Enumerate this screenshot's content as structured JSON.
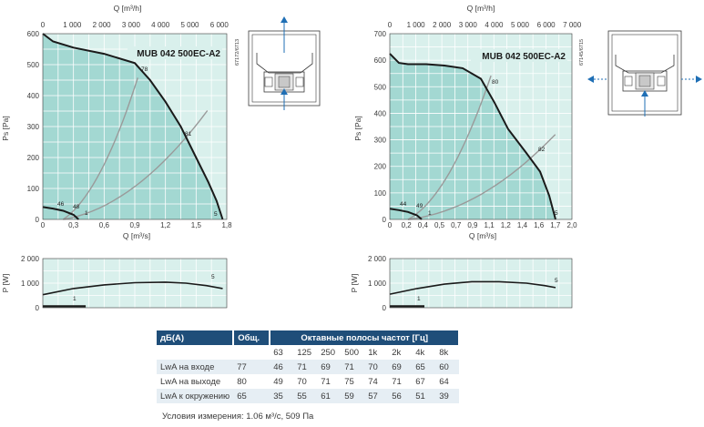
{
  "charts": [
    {
      "model": "MUB 042 500EC-A2",
      "drawing_code": "67172/6713",
      "q_top_label": "Q [m³/h]",
      "q_bottom_label": "Q [m³/s]",
      "ps_label": "Ps [Pa]",
      "p_label": "P [W]",
      "top_ticks": [
        "0",
        "1 000",
        "2 000",
        "3 000",
        "4 000",
        "5 000",
        "6 000"
      ],
      "bottom_ticks": [
        "0",
        "0,3",
        "0,6",
        "0,9",
        "1,2",
        "1,5",
        "1,8"
      ],
      "ps_ticks": [
        "0",
        "100",
        "200",
        "300",
        "400",
        "500",
        "600"
      ],
      "p_ticks": [
        "0",
        "1 000",
        "2 000"
      ],
      "curve_labels": [
        "46",
        "48",
        "1",
        "78",
        "81",
        "5"
      ],
      "power_labels": [
        "1",
        "5"
      ]
    },
    {
      "model": "MUB 042 500EC-A2",
      "drawing_code": "67145/6715",
      "q_top_label": "Q [m³/h]",
      "q_bottom_label": "Q [m³/s]",
      "ps_label": "Ps [Pa]",
      "p_label": "P [W]",
      "top_ticks": [
        "0",
        "1 000",
        "2 000",
        "3 000",
        "4 000",
        "5 000",
        "6 000",
        "7 000"
      ],
      "bottom_ticks": [
        "0",
        "0,2",
        "0,4",
        "0,5",
        "0,7",
        "0,9",
        "1,1",
        "1,2",
        "1,4",
        "1,6",
        "1,7",
        "2,0"
      ],
      "ps_ticks": [
        "0",
        "100",
        "200",
        "300",
        "400",
        "500",
        "600",
        "700"
      ],
      "p_ticks": [
        "0",
        "1 000",
        "2 000"
      ],
      "curve_labels": [
        "44",
        "49",
        "1",
        "80",
        "82",
        "5"
      ],
      "power_labels": [
        "1",
        "5"
      ]
    }
  ],
  "chart_data": [
    {
      "type": "line",
      "title": "MUB 042 500EC-A2",
      "xlabel": "Q [m³/s]",
      "ylabel": "Ps [Pa]",
      "xlim": [
        0,
        1.8
      ],
      "ylim": [
        0,
        600
      ],
      "grid": true,
      "series": [
        {
          "name": "5",
          "x": [
            0,
            0.1,
            0.3,
            0.6,
            0.9,
            1.05,
            1.2,
            1.35,
            1.5,
            1.62,
            1.7,
            1.76
          ],
          "y": [
            600,
            575,
            555,
            535,
            505,
            450,
            380,
            300,
            200,
            120,
            60,
            0
          ]
        },
        {
          "name": "1",
          "x": [
            0,
            0.1,
            0.2,
            0.3,
            0.35
          ],
          "y": [
            40,
            35,
            28,
            15,
            0
          ]
        }
      ],
      "points": [
        {
          "label": "46",
          "x": 0.2,
          "y": 30
        },
        {
          "label": "48",
          "x": 0.3,
          "y": 15
        },
        {
          "label": "78",
          "x": 0.92,
          "y": 470
        },
        {
          "label": "81",
          "x": 1.4,
          "y": 270
        }
      ]
    },
    {
      "type": "line",
      "title": "MUB 042 500EC-A2",
      "xlabel": "Q [m³/s]",
      "ylabel": "Ps [Pa]",
      "xlim": [
        0,
        2.0
      ],
      "ylim": [
        0,
        700
      ],
      "grid": true,
      "series": [
        {
          "name": "5",
          "x": [
            0,
            0.1,
            0.2,
            0.4,
            0.6,
            0.8,
            1.0,
            1.15,
            1.3,
            1.5,
            1.65,
            1.75,
            1.82
          ],
          "y": [
            625,
            590,
            585,
            585,
            580,
            570,
            530,
            440,
            340,
            250,
            180,
            90,
            0
          ]
        },
        {
          "name": "1",
          "x": [
            0,
            0.1,
            0.2,
            0.3,
            0.35
          ],
          "y": [
            40,
            35,
            28,
            15,
            0
          ]
        }
      ],
      "points": [
        {
          "label": "44",
          "x": 0.15,
          "y": 30
        },
        {
          "label": "49",
          "x": 0.3,
          "y": 15
        },
        {
          "label": "80",
          "x": 1.05,
          "y": 500
        },
        {
          "label": "82",
          "x": 1.58,
          "y": 245
        }
      ]
    },
    {
      "type": "line",
      "xlabel": "Q [m³/s]",
      "ylabel": "P [W]",
      "xlim": [
        0,
        1.8
      ],
      "ylim": [
        0,
        2000
      ],
      "series": [
        {
          "name": "5",
          "x": [
            0,
            0.3,
            0.6,
            0.9,
            1.2,
            1.4,
            1.6,
            1.76
          ],
          "y": [
            530,
            780,
            930,
            1020,
            1040,
            1000,
            900,
            780
          ]
        },
        {
          "name": "1",
          "x": [
            0,
            0.3,
            0.42
          ],
          "y": [
            60,
            60,
            60
          ]
        }
      ]
    },
    {
      "type": "line",
      "xlabel": "Q [m³/s]",
      "ylabel": "P [W]",
      "xlim": [
        0,
        2.0
      ],
      "ylim": [
        0,
        2000
      ],
      "series": [
        {
          "name": "5",
          "x": [
            0,
            0.3,
            0.6,
            0.9,
            1.2,
            1.5,
            1.7,
            1.82
          ],
          "y": [
            550,
            780,
            960,
            1060,
            1060,
            1000,
            900,
            820
          ]
        },
        {
          "name": "1",
          "x": [
            0,
            0.25,
            0.38
          ],
          "y": [
            60,
            60,
            60
          ]
        }
      ]
    }
  ],
  "table": {
    "col_label": "дБ(A)",
    "col_total": "Общ.",
    "col_bands": "Октавные полосы частот [Гц]",
    "freqs": [
      "63",
      "125",
      "250",
      "500",
      "1k",
      "2k",
      "4k",
      "8k"
    ],
    "rows": [
      {
        "label": "LwA на входе",
        "total": "77",
        "values": [
          "46",
          "71",
          "69",
          "71",
          "70",
          "69",
          "65",
          "60"
        ]
      },
      {
        "label": "LwA на выходе",
        "total": "80",
        "values": [
          "49",
          "70",
          "71",
          "75",
          "74",
          "71",
          "67",
          "64"
        ]
      },
      {
        "label": "LwA к окружению",
        "total": "65",
        "values": [
          "35",
          "55",
          "61",
          "59",
          "57",
          "56",
          "51",
          "39"
        ]
      }
    ]
  },
  "conditions": "Условия измерения: 1.06 м³/с, 509 Па",
  "colors": {
    "plot_bg": "#d9f0ec",
    "area_fill": "#a3d8d2",
    "grid": "#ffffff",
    "curve": "#1a1a1a",
    "system_curve": "#9a9a9a",
    "table_header": "#1f4e79",
    "table_band": "#e6eef4"
  }
}
